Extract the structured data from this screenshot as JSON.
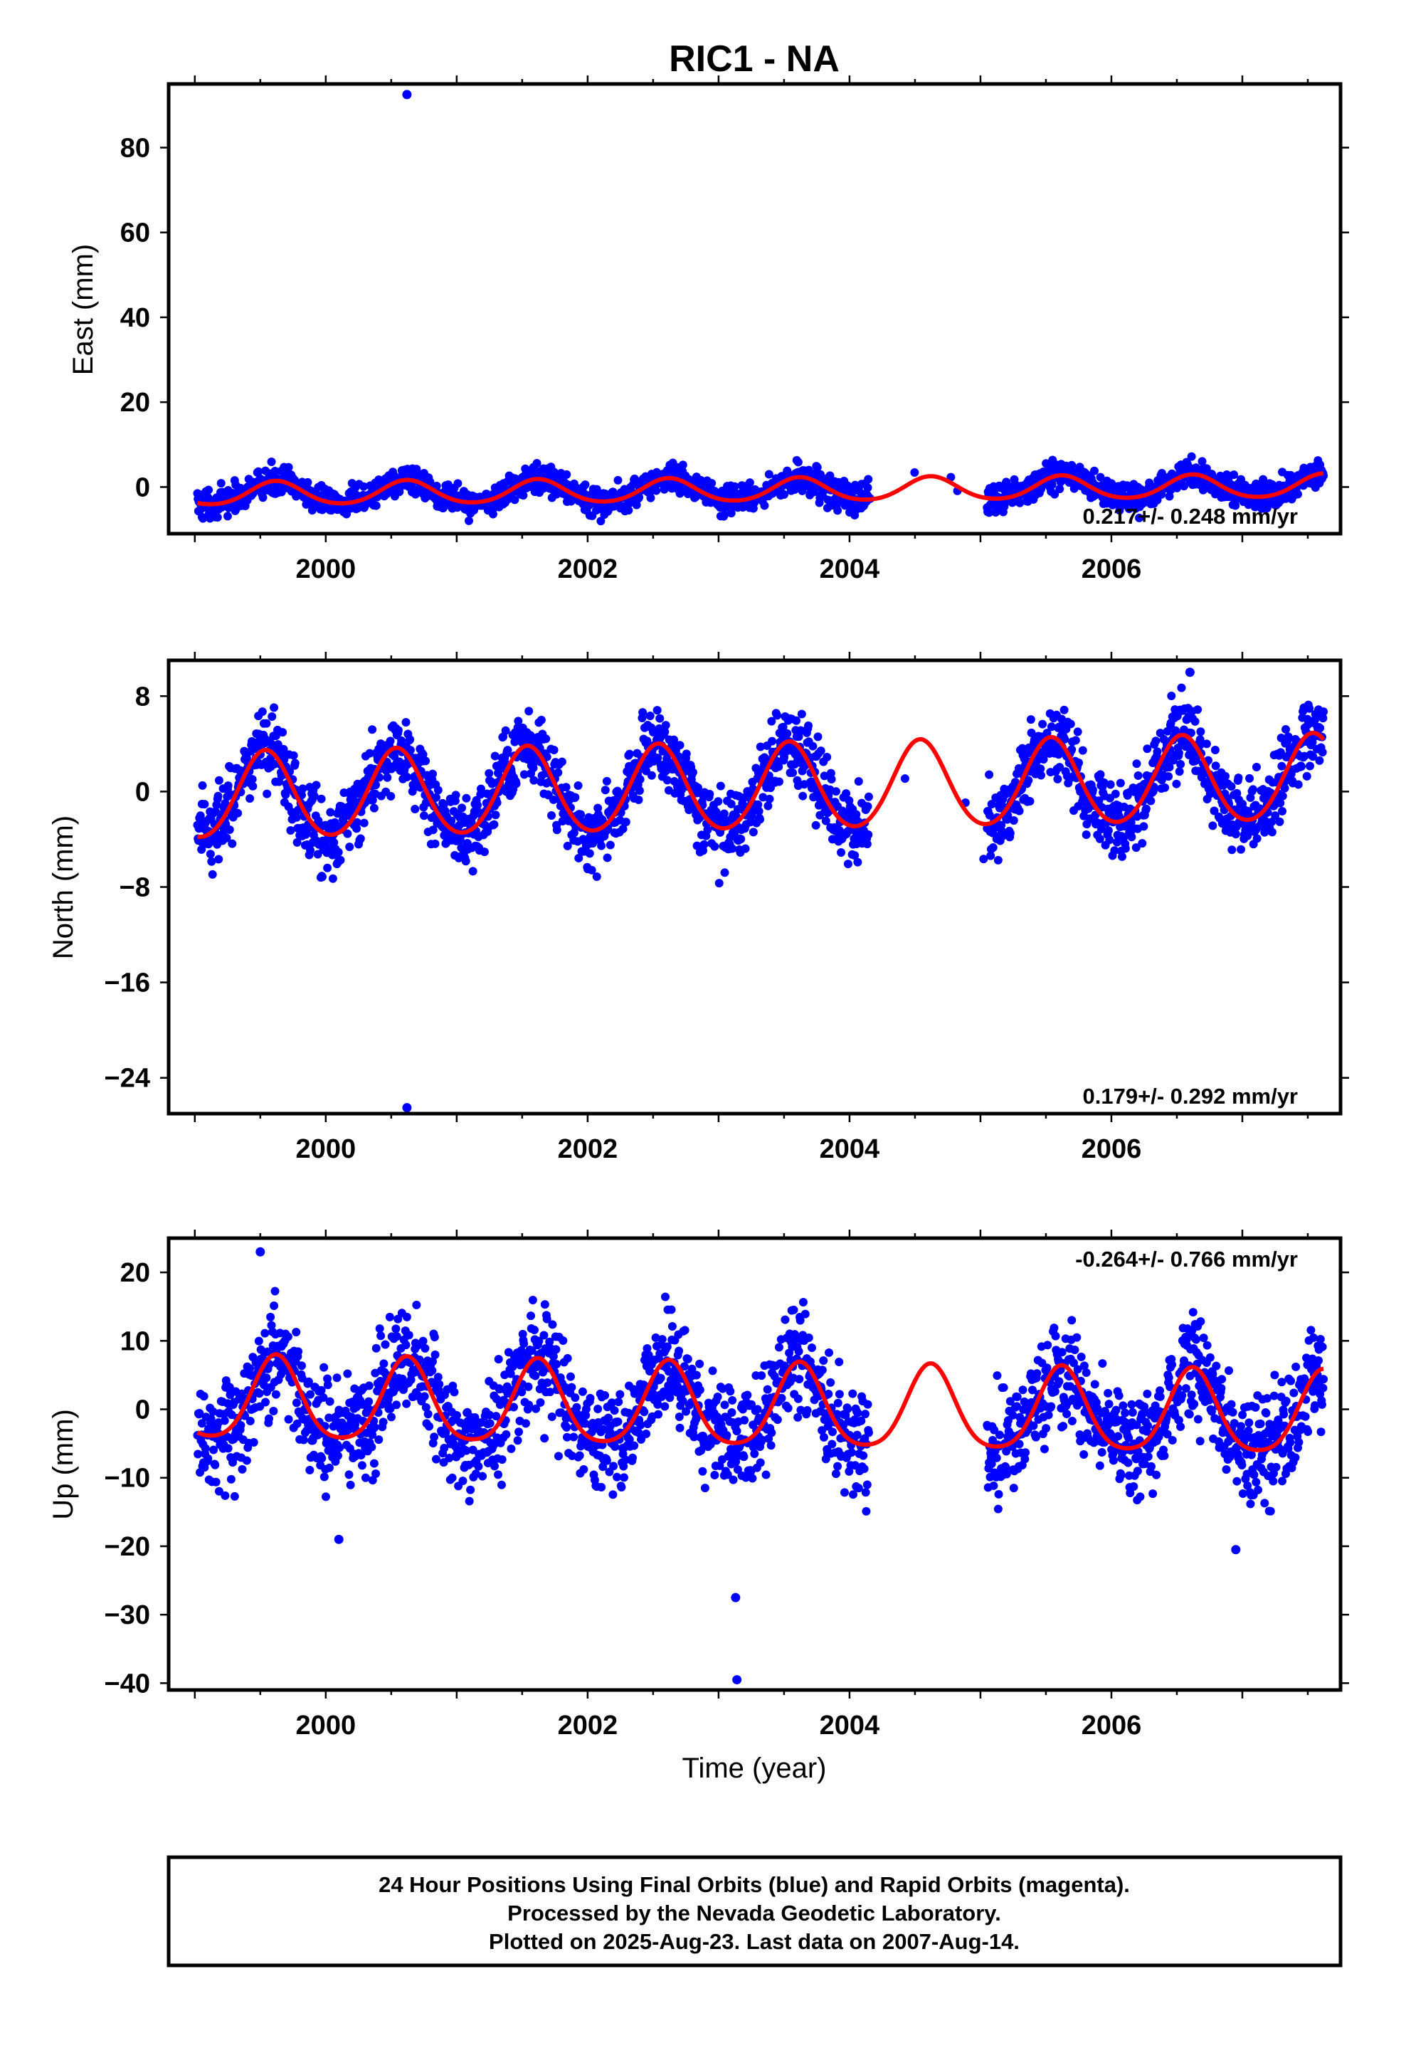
{
  "title": "RIC1 - NA",
  "xlabel": "Time (year)",
  "caption": [
    "24 Hour Positions Using Final Orbits (blue) and Rapid Orbits (magenta).",
    "Processed by the Nevada Geodetic Laboratory.",
    "Plotted on 2025-Aug-23. Last data on 2007-Aug-14."
  ],
  "colors": {
    "points": "#0000ff",
    "fit": "#ff0000",
    "frame": "#000000"
  },
  "chart_data": [
    {
      "type": "scatter",
      "ylabel": "East (mm)",
      "xlim": [
        1998.8,
        2007.75
      ],
      "ylim": [
        -11,
        95
      ],
      "yticks": [
        0,
        20,
        40,
        60,
        80
      ],
      "xticks": [
        2000,
        2002,
        2004,
        2006
      ],
      "rate_label": "0.217+/- 0.248 mm/yr",
      "rate_position": "bottom-right",
      "gap": [
        2004.15,
        2005.05
      ],
      "outliers": [
        {
          "x": 2000.62,
          "y": 92.5
        }
      ],
      "model": {
        "rate": 0.217,
        "offset": -0.7,
        "annual_amplitude": 2.7,
        "annual_peak": 2000.62,
        "semiannual_amplitude": 0.3,
        "noise": 1.6
      },
      "series": [
        {
          "name": "Final Orbits (blue)",
          "style": "points"
        },
        {
          "name": "fit",
          "style": "line"
        }
      ]
    },
    {
      "type": "scatter",
      "ylabel": "North (mm)",
      "xlim": [
        1998.8,
        2007.75
      ],
      "ylim": [
        -27,
        11
      ],
      "yticks": [
        -24,
        -16,
        -8,
        0,
        8
      ],
      "xticks": [
        2000,
        2002,
        2004,
        2006
      ],
      "rate_label": "0.179+/- 0.292 mm/yr",
      "rate_position": "bottom-right",
      "gap": [
        2004.15,
        2005.05
      ],
      "outliers": [
        {
          "x": 2000.62,
          "y": -26.5
        },
        {
          "x": 2006.6,
          "y": 10
        }
      ],
      "model": {
        "rate": 0.179,
        "offset": 0.3,
        "annual_amplitude": 3.6,
        "annual_peak": 2000.54,
        "semiannual_amplitude": 0.3,
        "noise": 1.5
      },
      "series": [
        {
          "name": "Final Orbits (blue)",
          "style": "points"
        },
        {
          "name": "fit",
          "style": "line"
        }
      ]
    },
    {
      "type": "scatter",
      "ylabel": "Up (mm)",
      "xlim": [
        1998.8,
        2007.75
      ],
      "ylim": [
        -41,
        25
      ],
      "yticks": [
        -40,
        -30,
        -20,
        -10,
        0,
        10,
        20
      ],
      "xticks": [
        2000,
        2002,
        2004,
        2006
      ],
      "rate_label": "-0.264+/- 0.766 mm/yr",
      "rate_position": "top-right",
      "gap": [
        2004.15,
        2005.05
      ],
      "outliers": [
        {
          "x": 2003.13,
          "y": -27.5
        },
        {
          "x": 2003.14,
          "y": -39.5
        },
        {
          "x": 2000.1,
          "y": -19
        },
        {
          "x": 2006.95,
          "y": -20.5
        },
        {
          "x": 1999.5,
          "y": 23
        }
      ],
      "model": {
        "rate": -0.264,
        "offset": 0.0,
        "annual_amplitude": 6.0,
        "annual_peak": 2000.62,
        "semiannual_amplitude": 1.0,
        "noise": 3.8
      },
      "series": [
        {
          "name": "Final Orbits (blue)",
          "style": "points"
        },
        {
          "name": "fit",
          "style": "line"
        }
      ]
    }
  ]
}
